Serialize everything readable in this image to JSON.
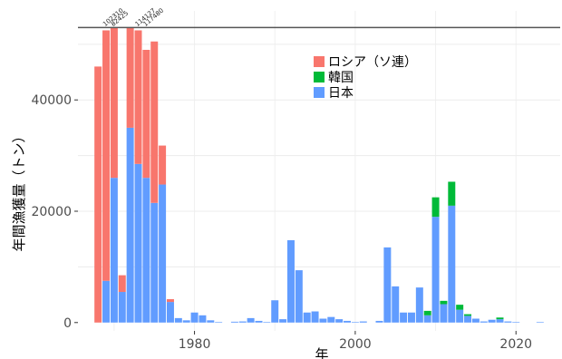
{
  "chart_data": {
    "type": "bar",
    "stacked": true,
    "title": "",
    "xlabel": "年",
    "ylabel": "年間漁獲量（トン）",
    "xlim": [
      1965.5,
      2025.5
    ],
    "ylim": [
      -1500,
      56000
    ],
    "x_ticks": [
      1980,
      2000,
      2020
    ],
    "y_ticks": [
      0,
      20000,
      40000
    ],
    "y_tick_labels": [
      "0",
      "20000",
      "40000"
    ],
    "grid": true,
    "legend_position": "top-center",
    "cap_line": 53000,
    "series": [
      {
        "name": "ロシア（ソ連）",
        "color": "#F8766D",
        "points": [
          [
            1968,
            46000
          ],
          [
            1969,
            45000
          ],
          [
            1970,
            27000
          ],
          [
            1971,
            3000
          ],
          [
            1972,
            18000
          ],
          [
            1973,
            24000
          ],
          [
            1974,
            23000
          ],
          [
            1975,
            29000
          ],
          [
            1976,
            7000
          ],
          [
            1977,
            500
          ]
        ]
      },
      {
        "name": "韓国",
        "color": "#00BA38",
        "points": [
          [
            2009,
            800
          ],
          [
            2010,
            3500
          ],
          [
            2011,
            600
          ],
          [
            2012,
            4300
          ],
          [
            2013,
            900
          ],
          [
            2014,
            300
          ],
          [
            2018,
            300
          ]
        ]
      },
      {
        "name": "日本",
        "color": "#619CFF",
        "points": [
          [
            1969,
            7500
          ],
          [
            1970,
            26000
          ],
          [
            1971,
            5500
          ],
          [
            1972,
            35000
          ],
          [
            1973,
            28500
          ],
          [
            1974,
            26000
          ],
          [
            1975,
            21500
          ],
          [
            1976,
            24800
          ],
          [
            1977,
            3700
          ],
          [
            1978,
            800
          ],
          [
            1979,
            400
          ],
          [
            1980,
            1800
          ],
          [
            1981,
            1300
          ],
          [
            1982,
            400
          ],
          [
            1983,
            100
          ],
          [
            1985,
            150
          ],
          [
            1986,
            200
          ],
          [
            1987,
            800
          ],
          [
            1988,
            300
          ],
          [
            1989,
            100
          ],
          [
            1990,
            4000
          ],
          [
            1991,
            600
          ],
          [
            1992,
            14800
          ],
          [
            1993,
            9400
          ],
          [
            1994,
            1800
          ],
          [
            1995,
            2000
          ],
          [
            1996,
            700
          ],
          [
            1997,
            1000
          ],
          [
            1998,
            600
          ],
          [
            1999,
            300
          ],
          [
            2000,
            100
          ],
          [
            2001,
            200
          ],
          [
            2003,
            300
          ],
          [
            2004,
            13500
          ],
          [
            2005,
            6500
          ],
          [
            2006,
            1800
          ],
          [
            2007,
            1800
          ],
          [
            2008,
            6300
          ],
          [
            2009,
            1300
          ],
          [
            2010,
            19000
          ],
          [
            2011,
            3300
          ],
          [
            2012,
            21000
          ],
          [
            2013,
            2300
          ],
          [
            2014,
            1200
          ],
          [
            2015,
            700
          ],
          [
            2016,
            200
          ],
          [
            2017,
            500
          ],
          [
            2018,
            600
          ],
          [
            2019,
            200
          ],
          [
            2020,
            100
          ],
          [
            2023,
            100
          ]
        ]
      }
    ],
    "annotations": [
      {
        "x": 1969,
        "text": "102310"
      },
      {
        "x": 1970,
        "text": "82425"
      },
      {
        "x": 1973,
        "text": "114127"
      },
      {
        "x": 1974,
        "text": "117480"
      }
    ]
  }
}
